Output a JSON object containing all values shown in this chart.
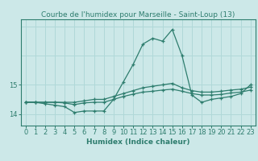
{
  "title": "Courbe de l'humidex pour Marseille - Saint-Loup (13)",
  "xlabel": "Humidex (Indice chaleur)",
  "x_values": [
    0,
    1,
    2,
    3,
    4,
    5,
    6,
    7,
    8,
    9,
    10,
    11,
    12,
    13,
    14,
    15,
    16,
    17,
    18,
    19,
    20,
    21,
    22,
    23
  ],
  "line1_y": [
    14.4,
    14.4,
    14.35,
    14.3,
    14.25,
    14.05,
    14.1,
    14.1,
    14.1,
    14.5,
    15.1,
    15.7,
    16.4,
    16.6,
    16.5,
    16.9,
    16.0,
    14.65,
    14.4,
    14.5,
    14.55,
    14.6,
    14.7,
    15.0
  ],
  "line2_y": [
    14.4,
    14.4,
    14.4,
    14.4,
    14.4,
    14.4,
    14.45,
    14.5,
    14.5,
    14.6,
    14.7,
    14.8,
    14.9,
    14.95,
    15.0,
    15.05,
    14.9,
    14.8,
    14.75,
    14.75,
    14.78,
    14.82,
    14.85,
    14.92
  ],
  "line3_y": [
    14.4,
    14.4,
    14.4,
    14.4,
    14.38,
    14.32,
    14.38,
    14.4,
    14.4,
    14.5,
    14.6,
    14.68,
    14.75,
    14.78,
    14.82,
    14.85,
    14.78,
    14.7,
    14.65,
    14.65,
    14.67,
    14.72,
    14.75,
    14.82
  ],
  "line_color": "#2e7d6e",
  "bg_color": "#cce8e8",
  "grid_color": "#b0d8d8",
  "ylim_min": 13.6,
  "ylim_max": 17.25,
  "yticks": [
    14,
    15
  ],
  "ytick_labels": [
    "14",
    "15"
  ],
  "label_fontsize": 6.5,
  "tick_fontsize": 6.0
}
